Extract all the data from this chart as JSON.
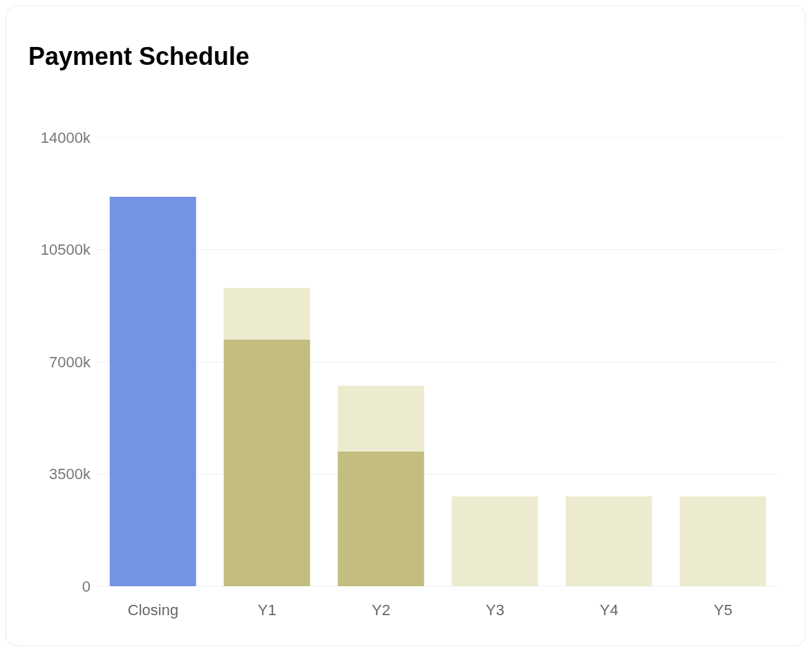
{
  "chart_data": {
    "type": "bar",
    "title": "Payment Schedule",
    "categories": [
      "Closing",
      "Y1",
      "Y2",
      "Y3",
      "Y4",
      "Y5"
    ],
    "stacked": true,
    "series": [
      {
        "color": "#7393e3",
        "values": [
          12150,
          null,
          null,
          null,
          null,
          null
        ]
      },
      {
        "color": "#c3be7f",
        "values": [
          null,
          7700,
          4200,
          null,
          null,
          null
        ]
      },
      {
        "color": "#edebcf",
        "values": [
          null,
          1600,
          2050,
          2800,
          2800,
          2800
        ]
      }
    ],
    "ylim": [
      0,
      14000
    ],
    "yticks": [
      {
        "value": 0,
        "label": "0"
      },
      {
        "value": 3500,
        "label": "3500k"
      },
      {
        "value": 7000,
        "label": "7000k"
      },
      {
        "value": 10500,
        "label": "10500k"
      },
      {
        "value": 14000,
        "label": "14000k"
      }
    ],
    "grid": "y"
  }
}
